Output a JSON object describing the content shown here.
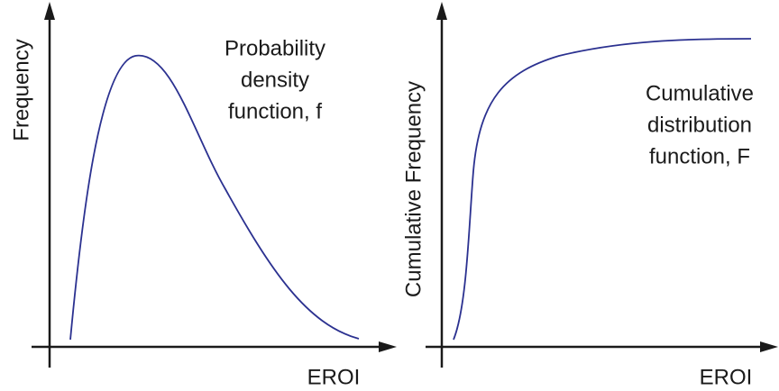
{
  "panels": [
    {
      "y_label": "Frequency",
      "x_label": "EROI",
      "annotation": [
        "Probability",
        "density",
        "function, f"
      ]
    },
    {
      "y_label": "Cumulative Frequency",
      "x_label": "EROI",
      "annotation": [
        "Cumulative",
        "distribution",
        "function, F"
      ]
    }
  ]
}
